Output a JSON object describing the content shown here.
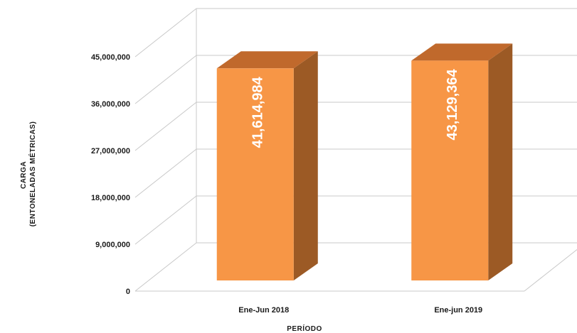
{
  "chart_data": {
    "type": "bar",
    "style": "3d",
    "categories": [
      "Ene-Jun 2018",
      "Ene-jun 2019"
    ],
    "values": [
      41614984,
      43129364
    ],
    "data_labels": [
      "41,614,984",
      "43,129,364"
    ],
    "title": "",
    "xlabel": "PERÍODO",
    "ylabel_lines": [
      "CARGA",
      "(ENTONELADAS MÉTRICAS)"
    ],
    "ylim": [
      0,
      45000000
    ],
    "yticks": [
      0,
      9000000,
      18000000,
      27000000,
      36000000,
      45000000
    ],
    "ytick_labels": [
      "0",
      "9,000,000",
      "18,000,000",
      "27,000,000",
      "36,000,000",
      "45,000,000"
    ],
    "grid": true,
    "legend": "none",
    "colors": {
      "bar_front": "#f79646",
      "bar_top": "#c0692c",
      "bar_side": "#9c5a25",
      "gridline": "#c8c8c8"
    }
  }
}
